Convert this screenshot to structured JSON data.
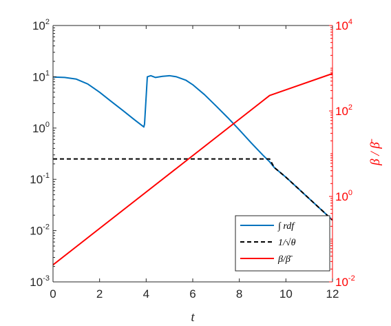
{
  "chart_data": {
    "type": "line",
    "xlabel": "t",
    "ylabel_right": "β / β̄",
    "xlim": [
      0,
      12
    ],
    "ylim_left": [
      0.001,
      100
    ],
    "ylim_right": [
      0.01,
      10000
    ],
    "yscale_left": "log",
    "yscale_right": "log",
    "x_ticks": [
      "0",
      "2",
      "4",
      "6",
      "8",
      "10",
      "12"
    ],
    "y_left_ticks": [
      {
        "base": "10",
        "exp": "2"
      },
      {
        "base": "10",
        "exp": "1"
      },
      {
        "base": "10",
        "exp": "0"
      },
      {
        "base": "10",
        "exp": "-1"
      },
      {
        "base": "10",
        "exp": "-2"
      },
      {
        "base": "10",
        "exp": "-3"
      }
    ],
    "y_right_ticks": [
      {
        "base": "10",
        "exp": "4"
      },
      {
        "base": "10",
        "exp": "2"
      },
      {
        "base": "10",
        "exp": "0"
      },
      {
        "base": "10",
        "exp": "-2"
      }
    ],
    "legend_placement": "bottom-right",
    "series": [
      {
        "name": "∫ rdf",
        "axis": "left",
        "color": "#0072BD",
        "style": "solid",
        "x": [
          0,
          0.5,
          1.0,
          1.5,
          2.0,
          2.5,
          3.0,
          3.5,
          3.9,
          3.93,
          4.05,
          4.2,
          4.4,
          4.7,
          5.0,
          5.3,
          5.7,
          6.0,
          6.5,
          7.0,
          7.5,
          8.0,
          8.5,
          9.0,
          9.3,
          9.5,
          10.0,
          10.5,
          11.0,
          11.5,
          12.0
        ],
        "y": [
          9.9,
          9.7,
          9.0,
          7.2,
          5.0,
          3.3,
          2.2,
          1.45,
          1.05,
          1.2,
          10.0,
          10.5,
          9.7,
          10.2,
          10.5,
          10.0,
          8.6,
          7.0,
          4.5,
          2.7,
          1.6,
          0.92,
          0.52,
          0.3,
          0.22,
          0.17,
          0.11,
          0.068,
          0.042,
          0.026,
          0.016
        ]
      },
      {
        "name": "1/√θ",
        "axis": "left",
        "color": "#000000",
        "style": "dashed",
        "x": [
          0,
          1,
          2,
          3,
          4,
          5,
          6,
          7,
          8,
          9,
          9.3,
          9.5,
          10.0,
          10.5,
          11.0,
          11.5,
          12.0
        ],
        "y": [
          0.25,
          0.25,
          0.25,
          0.25,
          0.25,
          0.25,
          0.25,
          0.25,
          0.25,
          0.25,
          0.25,
          0.17,
          0.11,
          0.068,
          0.042,
          0.026,
          0.016
        ]
      },
      {
        "name": "β/β̄",
        "axis": "right",
        "color": "#FF0000",
        "style": "solid",
        "x": [
          0,
          9.3,
          12.0
        ],
        "y": [
          0.025,
          230,
          750
        ]
      }
    ]
  }
}
